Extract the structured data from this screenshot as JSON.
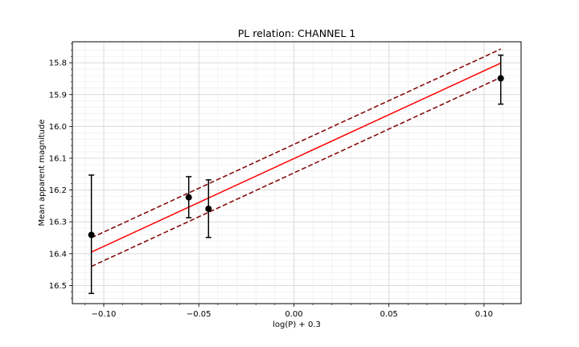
{
  "chart_data": {
    "type": "scatter",
    "title": "PL relation: CHANNEL 1",
    "xlabel": "log(P) + 0.3",
    "ylabel": "Mean apparent magnitude",
    "xlim": [
      -0.1165,
      0.1195
    ],
    "ylim": [
      16.557,
      15.734
    ],
    "y_inverted": true,
    "grid": true,
    "minor_grid": true,
    "x_ticks": [
      -0.1,
      -0.05,
      0.0,
      0.05,
      0.1
    ],
    "x_tick_labels": [
      "−0.10",
      "−0.05",
      "0.00",
      "0.05",
      "0.10"
    ],
    "y_ticks": [
      15.8,
      15.9,
      16.0,
      16.1,
      16.2,
      16.3,
      16.4,
      16.5
    ],
    "y_tick_labels": [
      "15.8",
      "15.9",
      "16.0",
      "16.1",
      "16.2",
      "16.3",
      "16.4",
      "16.5"
    ],
    "points": [
      {
        "x": -0.1065,
        "y": 16.341,
        "err_low": 16.153,
        "err_high": 16.525
      },
      {
        "x": -0.0553,
        "y": 16.223,
        "err_low": 16.158,
        "err_high": 16.287
      },
      {
        "x": -0.0449,
        "y": 16.259,
        "err_low": 16.168,
        "err_high": 16.349
      },
      {
        "x": 0.1088,
        "y": 15.849,
        "err_low": 15.776,
        "err_high": 15.93
      }
    ],
    "fit_line": {
      "x": [
        -0.1065,
        0.1088
      ],
      "y": [
        16.395,
        15.801
      ]
    },
    "upper_bound": {
      "x": [
        -0.1065,
        0.1088
      ],
      "y": [
        16.35,
        15.757
      ]
    },
    "lower_bound": {
      "x": [
        -0.1065,
        0.1088
      ],
      "y": [
        16.44,
        15.846
      ]
    },
    "colors": {
      "points": "#000000",
      "fit": "#ff0000",
      "bounds": "#800000",
      "grid": "#d8d8d8",
      "minor_grid": "#ebebeb"
    }
  }
}
